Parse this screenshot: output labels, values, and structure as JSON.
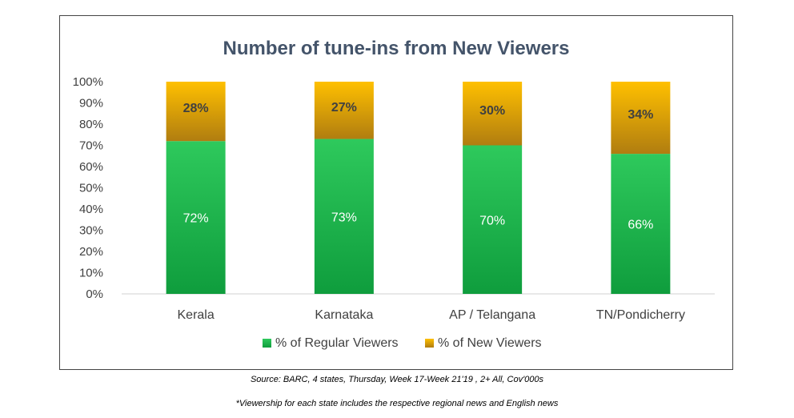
{
  "chart_data": {
    "type": "bar",
    "stacked": true,
    "title": "Number of tune-ins from New Viewers",
    "categories": [
      "Kerala",
      "Karnataka",
      "AP / Telangana",
      "TN/Pondicherry"
    ],
    "series": [
      {
        "name": "% of Regular Viewers",
        "values": [
          72,
          73,
          70,
          66
        ],
        "labels": [
          "72%",
          "73%",
          "70%",
          "66%"
        ],
        "color_top": "#2ec95c",
        "color_bottom": "#0f9d3d"
      },
      {
        "name": "% of New Viewers",
        "values": [
          28,
          27,
          30,
          34
        ],
        "labels": [
          "28%",
          "27%",
          "30%",
          "34%"
        ],
        "color_top": "#ffc000",
        "color_bottom": "#b07d10"
      }
    ],
    "yticks": [
      "0%",
      "10%",
      "20%",
      "30%",
      "40%",
      "50%",
      "60%",
      "70%",
      "80%",
      "90%",
      "100%"
    ],
    "ylim": [
      0,
      100
    ],
    "xlabel": "",
    "ylabel": "",
    "grid": false,
    "legend_position": "bottom"
  },
  "notes": {
    "source": "Source: BARC, 4 states, Thursday, Week 17-Week 21'19 , 2+ All, Cov'000s",
    "viewership": "*Viewership for each state includes the respective regional news and English news"
  }
}
